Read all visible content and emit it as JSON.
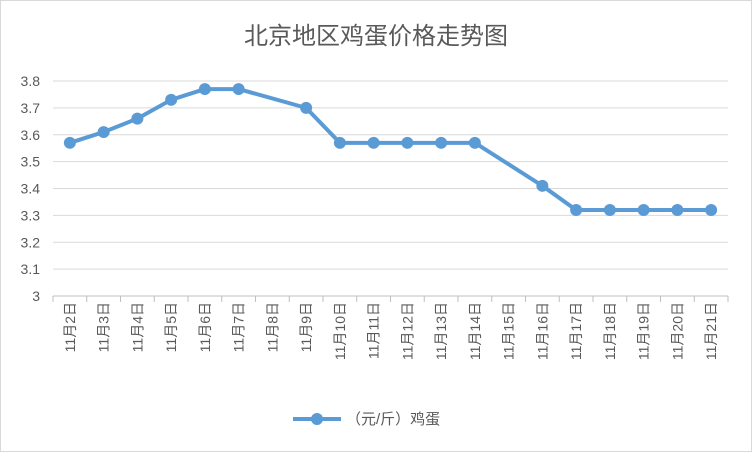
{
  "chart_data": {
    "type": "line",
    "title": "北京地区鸡蛋价格走势图",
    "categories": [
      "11月2日",
      "11月3日",
      "11月4日",
      "11月5日",
      "11月6日",
      "11月7日",
      "11月8日",
      "11月9日",
      "11月10日",
      "11月11日",
      "11月12日",
      "11月13日",
      "11月14日",
      "11月15日",
      "11月16日",
      "11月17日",
      "11月18日",
      "11月19日",
      "11月20日",
      "11月21日"
    ],
    "series": [
      {
        "name": "（元/斤）鸡蛋",
        "color": "#5b9bd5",
        "values": [
          3.57,
          3.61,
          3.66,
          3.73,
          3.77,
          3.77,
          null,
          3.7,
          3.57,
          3.57,
          3.57,
          3.57,
          3.57,
          null,
          3.41,
          3.32,
          3.32,
          3.32,
          3.32,
          3.32
        ]
      }
    ],
    "yticks": [
      "3",
      "3.1",
      "3.2",
      "3.3",
      "3.4",
      "3.5",
      "3.6",
      "3.7",
      "3.8"
    ],
    "ylim": [
      3,
      3.8
    ],
    "grid": true,
    "legend_position": "bottom"
  }
}
